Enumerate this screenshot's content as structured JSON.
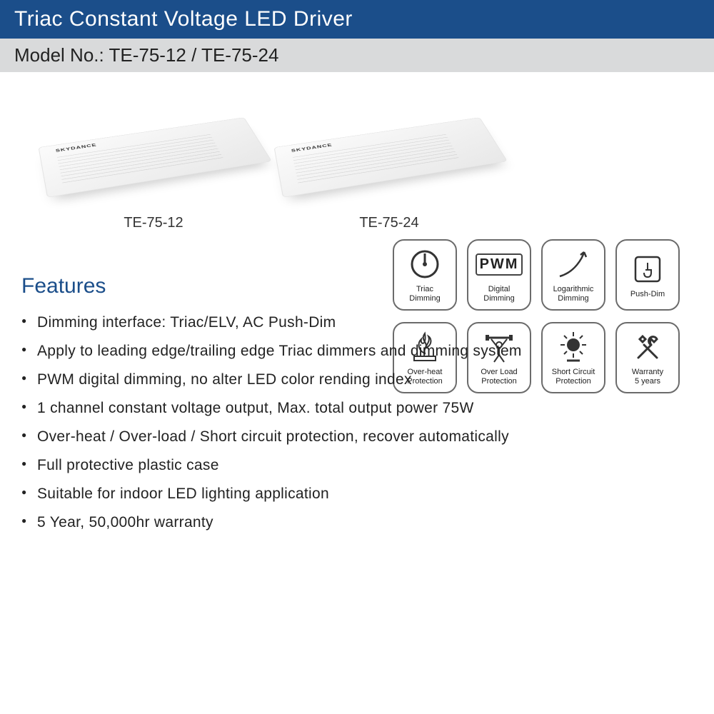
{
  "header": {
    "title": "Triac Constant Voltage LED Driver",
    "model_line": "Model No.: TE-75-12 / TE-75-24"
  },
  "products": [
    {
      "label": "TE-75-12"
    },
    {
      "label": "TE-75-24"
    }
  ],
  "icons": {
    "row1": [
      {
        "name": "triac-dimming-icon",
        "label": "Triac\nDimming"
      },
      {
        "name": "pwm-icon",
        "label": "Digital\nDimming"
      },
      {
        "name": "logarithmic-icon",
        "label": "Logarithmic\nDimming"
      },
      {
        "name": "push-dim-icon",
        "label": "Push-Dim"
      }
    ],
    "row2": [
      {
        "name": "overheat-icon",
        "label": "Over-heat\nProtection"
      },
      {
        "name": "overload-icon",
        "label": "Over Load\nProtection"
      },
      {
        "name": "short-circuit-icon",
        "label": "Short Circuit\nProtection"
      },
      {
        "name": "warranty-icon",
        "label": "Warranty\n5 years"
      }
    ]
  },
  "features": {
    "title": "Features",
    "items": [
      "Dimming interface: Triac/ELV, AC Push-Dim",
      "Apply to leading edge/trailing edge Triac dimmers and dimming system",
      "PWM digital dimming, no alter LED color rending index",
      "1 channel constant voltage output, Max. total output power 75W",
      "Over-heat / Over-load / Short circuit protection, recover automatically",
      "Full protective plastic case",
      "Suitable for indoor LED lighting application",
      "5 Year, 50,000hr warranty"
    ]
  },
  "colors": {
    "title_bg": "#1b4e8a",
    "model_bg": "#d9dadb",
    "text": "#222222",
    "icon_border": "#6b6b6b"
  }
}
